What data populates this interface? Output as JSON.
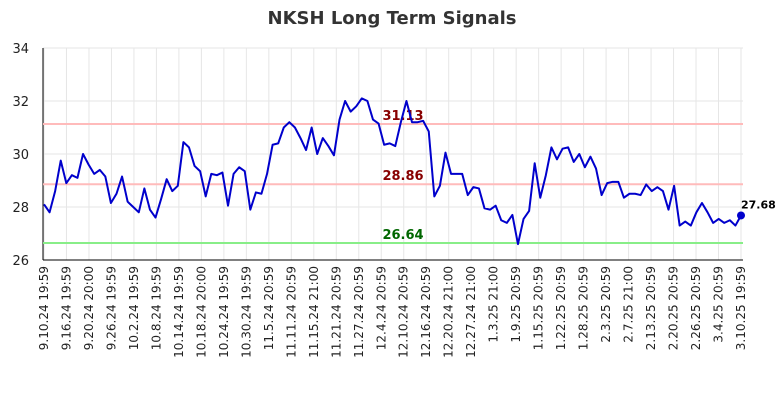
{
  "chart_data": {
    "type": "line",
    "title": "NKSH Long Term Signals",
    "ylim": [
      26,
      34
    ],
    "yticks": [
      26,
      28,
      30,
      32,
      34
    ],
    "grid": true,
    "series_color": "#0000cc",
    "x_tick_labels": [
      "9.10.24 19:59",
      "9.16.24 19:59",
      "9.20.24 20:00",
      "9.26.24 19:59",
      "10.2.24 19:59",
      "10.8.24 19:59",
      "10.14.24 19:59",
      "10.18.24 20:00",
      "10.24.24 19:59",
      "10.30.24 19:59",
      "11.5.24 20:59",
      "11.11.24 20:59",
      "11.15.24 21:00",
      "11.21.24 20:59",
      "11.27.24 20:59",
      "12.4.24 20:59",
      "12.10.24 20:59",
      "12.16.24 20:59",
      "12.20.24 21:00",
      "12.27.24 21:00",
      "1.3.25 21:00",
      "1.9.25 20:59",
      "1.15.25 20:59",
      "1.22.25 20:59",
      "1.28.25 20:59",
      "2.3.25 20:59",
      "2.7.25 21:00",
      "2.13.25 20:59",
      "2.20.25 20:59",
      "2.26.25 20:59",
      "3.4.25 20:59",
      "3.10.25 19:59"
    ],
    "values": [
      28.1,
      27.8,
      28.6,
      29.75,
      28.9,
      29.2,
      29.1,
      30.0,
      29.6,
      29.25,
      29.4,
      29.15,
      28.15,
      28.5,
      29.15,
      28.2,
      28.0,
      27.8,
      28.7,
      27.9,
      27.6,
      28.3,
      29.05,
      28.6,
      28.8,
      30.45,
      30.25,
      29.55,
      29.35,
      28.4,
      29.25,
      29.2,
      29.3,
      28.05,
      29.25,
      29.5,
      29.35,
      27.9,
      28.55,
      28.5,
      29.25,
      30.35,
      30.4,
      31.0,
      31.2,
      31.0,
      30.6,
      30.15,
      31.0,
      30.0,
      30.6,
      30.3,
      29.95,
      31.3,
      32.0,
      31.6,
      31.8,
      32.1,
      32.0,
      31.3,
      31.15,
      30.35,
      30.4,
      30.3,
      31.2,
      32.0,
      31.2,
      31.2,
      31.25,
      30.85,
      28.4,
      28.8,
      30.05,
      29.25,
      29.25,
      29.25,
      28.45,
      28.75,
      28.7,
      27.95,
      27.9,
      28.05,
      27.5,
      27.4,
      27.7,
      26.6,
      27.55,
      27.85,
      29.65,
      28.35,
      29.2,
      30.25,
      29.8,
      30.2,
      30.25,
      29.7,
      30.0,
      29.5,
      29.9,
      29.45,
      28.45,
      28.9,
      28.95,
      28.95,
      28.35,
      28.5,
      28.5,
      28.45,
      28.85,
      28.6,
      28.75,
      28.6,
      27.9,
      28.8,
      27.3,
      27.45,
      27.3,
      27.8,
      28.15,
      27.8,
      27.4,
      27.55,
      27.4,
      27.5,
      27.3,
      27.68
    ],
    "levels": [
      {
        "value": 31.13,
        "label": "31.13",
        "line_color": "#ffbbbb",
        "label_color": "#880000"
      },
      {
        "value": 28.86,
        "label": "28.86",
        "line_color": "#ffbbbb",
        "label_color": "#880000"
      },
      {
        "value": 26.64,
        "label": "26.64",
        "line_color": "#88ee88",
        "label_color": "#006600"
      }
    ],
    "last_value_label": "27.68"
  }
}
